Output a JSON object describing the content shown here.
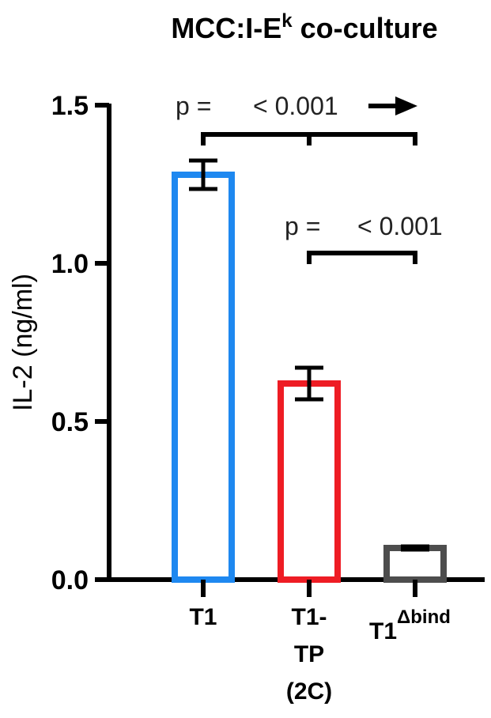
{
  "chart_data": {
    "type": "bar",
    "title": "MCC:I-E",
    "title_superscript": "k",
    "title_suffix": " co-culture",
    "ylabel": "IL-2 (ng/ml)",
    "ylim": [
      0,
      1.5
    ],
    "yticks": [
      0.0,
      0.5,
      1.0,
      1.5
    ],
    "ytick_labels": [
      "0.0",
      "0.5",
      "1.0",
      "1.5"
    ],
    "categories": [
      "T1",
      "T1-TP (2C)",
      "T1Δbind"
    ],
    "category_label_lines": [
      [
        "T1"
      ],
      [
        "T1-",
        "TP",
        "(2C)"
      ],
      [
        "T1"
      ]
    ],
    "category_superscripts": [
      "",
      "",
      "Δbind"
    ],
    "values": [
      1.28,
      0.62,
      0.1
    ],
    "errors": [
      0.045,
      0.05,
      0.005
    ],
    "bar_colors": [
      "#1e88f0",
      "#ee1c24",
      "#4d4d4d"
    ],
    "annotations": [
      {
        "prefix": "p =",
        "value": "< 0.001",
        "arrow": true,
        "from": 0,
        "to": 2,
        "ticks": [
          0,
          1,
          2
        ]
      },
      {
        "prefix": "p =",
        "value": "< 0.001",
        "arrow": false,
        "from": 1,
        "to": 2,
        "ticks": [
          1,
          2
        ]
      }
    ],
    "grid": false,
    "legend": "none"
  }
}
